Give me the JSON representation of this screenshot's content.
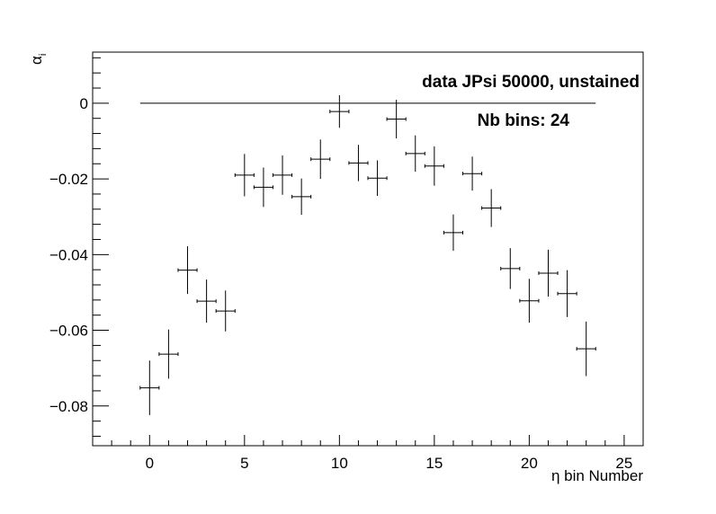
{
  "chart_data": {
    "type": "scatter",
    "title": "",
    "xlabel": "η bin Number",
    "ylabel_symbol": "α",
    "ylabel_subscript": "i",
    "xlim": [
      -3,
      26
    ],
    "ylim": [
      -0.0905,
      0.0135
    ],
    "x_ticks": [
      0,
      5,
      10,
      15,
      20,
      25
    ],
    "x_tick_labels": [
      "0",
      "5",
      "10",
      "15",
      "20",
      "25"
    ],
    "y_ticks": [
      0,
      -0.02,
      -0.04,
      -0.06,
      -0.08
    ],
    "y_tick_labels": [
      "0",
      "−0.02",
      "−0.04",
      "−0.06",
      "−0.08"
    ],
    "grid": false,
    "annotations": [
      "data JPsi 50000, unstained",
      "Nb bins: 24"
    ],
    "reference_line": {
      "y": 0,
      "x_from": -0.5,
      "x_to": 23.5
    },
    "points": [
      {
        "x": 0,
        "y": -0.0752,
        "yerr": 0.0072,
        "xerr": 0.5
      },
      {
        "x": 1,
        "y": -0.0663,
        "yerr": 0.0065,
        "xerr": 0.5
      },
      {
        "x": 2,
        "y": -0.0441,
        "yerr": 0.0063,
        "xerr": 0.5
      },
      {
        "x": 3,
        "y": -0.0523,
        "yerr": 0.0057,
        "xerr": 0.5
      },
      {
        "x": 4,
        "y": -0.0549,
        "yerr": 0.0054,
        "xerr": 0.5
      },
      {
        "x": 5,
        "y": -0.019,
        "yerr": 0.0056,
        "xerr": 0.5
      },
      {
        "x": 6,
        "y": -0.0222,
        "yerr": 0.0052,
        "xerr": 0.5
      },
      {
        "x": 7,
        "y": -0.019,
        "yerr": 0.0052,
        "xerr": 0.5
      },
      {
        "x": 8,
        "y": -0.0247,
        "yerr": 0.0048,
        "xerr": 0.5
      },
      {
        "x": 9,
        "y": -0.0148,
        "yerr": 0.0052,
        "xerr": 0.5
      },
      {
        "x": 10,
        "y": -0.0022,
        "yerr": 0.0043,
        "xerr": 0.5
      },
      {
        "x": 11,
        "y": -0.0158,
        "yerr": 0.0048,
        "xerr": 0.5
      },
      {
        "x": 12,
        "y": -0.0198,
        "yerr": 0.0047,
        "xerr": 0.5
      },
      {
        "x": 13,
        "y": -0.0042,
        "yerr": 0.0051,
        "xerr": 0.5
      },
      {
        "x": 14,
        "y": -0.0133,
        "yerr": 0.0048,
        "xerr": 0.5
      },
      {
        "x": 15,
        "y": -0.0166,
        "yerr": 0.0052,
        "xerr": 0.5
      },
      {
        "x": 16,
        "y": -0.0342,
        "yerr": 0.0048,
        "xerr": 0.5
      },
      {
        "x": 17,
        "y": -0.0186,
        "yerr": 0.0045,
        "xerr": 0.5
      },
      {
        "x": 18,
        "y": -0.0277,
        "yerr": 0.005,
        "xerr": 0.5
      },
      {
        "x": 19,
        "y": -0.0437,
        "yerr": 0.0054,
        "xerr": 0.5
      },
      {
        "x": 20,
        "y": -0.0522,
        "yerr": 0.0058,
        "xerr": 0.5
      },
      {
        "x": 21,
        "y": -0.0449,
        "yerr": 0.0062,
        "xerr": 0.5
      },
      {
        "x": 22,
        "y": -0.0503,
        "yerr": 0.0062,
        "xerr": 0.5
      },
      {
        "x": 23,
        "y": -0.0649,
        "yerr": 0.0072,
        "xerr": 0.5
      }
    ]
  }
}
